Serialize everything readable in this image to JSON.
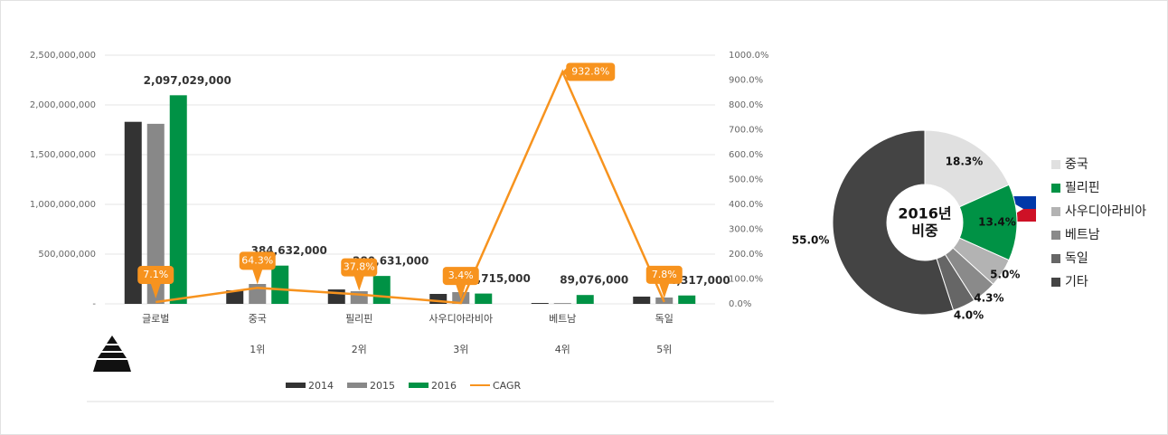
{
  "chart_data": [
    {
      "type": "bar",
      "categories": [
        "글로벌",
        "중국",
        "필리핀",
        "사우디아라비아",
        "베트남",
        "독일"
      ],
      "ranks": [
        null,
        "1위",
        "2위",
        "3위",
        "4위",
        "5위"
      ],
      "series": [
        {
          "name": "2014",
          "color": "#333333",
          "values": [
            1830000000,
            136000000,
            145000000,
            100000000,
            9000000,
            73000000
          ]
        },
        {
          "name": "2015",
          "color": "#888888",
          "values": [
            1810000000,
            200000000,
            127000000,
            118000000,
            8000000,
            64000000
          ]
        },
        {
          "name": "2016",
          "color": "#009245",
          "values": [
            2097029000,
            384632000,
            280631000,
            103715000,
            89076000,
            84317000
          ],
          "value_labels": [
            "2,097,029,000",
            "384,632,000",
            "280,631,000",
            "103,715,000",
            "89,076,000",
            "84,317,000"
          ]
        },
        {
          "name": "CAGR",
          "type": "line",
          "axis": "y2",
          "color": "#f7931e",
          "values": [
            7.1,
            64.3,
            37.8,
            3.4,
            932.8,
            7.8
          ],
          "value_labels": [
            "7.1%",
            "64.3%",
            "37.8%",
            "3.4%",
            "932.8%",
            "7.8%"
          ]
        }
      ],
      "ylim": [
        0,
        2500000000
      ],
      "yticks": [
        {
          "value": 0,
          "label": "-"
        },
        {
          "value": 500000000,
          "label": "500,000,000"
        },
        {
          "value": 1000000000,
          "label": "1,000,000,000"
        },
        {
          "value": 1500000000,
          "label": "1,500,000,000"
        },
        {
          "value": 2000000000,
          "label": "2,000,000,000"
        },
        {
          "value": 2500000000,
          "label": "2,500,000,000"
        }
      ],
      "y2lim": [
        0,
        1000
      ],
      "y2ticks": [
        {
          "value": 0,
          "label": "0.0%"
        },
        {
          "value": 100,
          "label": "100.0%"
        },
        {
          "value": 200,
          "label": "200.0%"
        },
        {
          "value": 300,
          "label": "300.0%"
        },
        {
          "value": 400,
          "label": "400.0%"
        },
        {
          "value": 500,
          "label": "500.0%"
        },
        {
          "value": 600,
          "label": "600.0%"
        },
        {
          "value": 700,
          "label": "700.0%"
        },
        {
          "value": 800,
          "label": "800.0%"
        },
        {
          "value": 900,
          "label": "900.0%"
        },
        {
          "value": 1000,
          "label": "1000.0%"
        }
      ],
      "grid": true,
      "legend": "bottom"
    },
    {
      "type": "pie",
      "center_label": [
        "2016년",
        "비중"
      ],
      "categories": [
        "중국",
        "필리핀",
        "사우디아라비아",
        "베트남",
        "독일",
        "기타"
      ],
      "values": [
        18.3,
        13.4,
        5.0,
        4.3,
        4.0,
        55.0
      ],
      "value_labels": [
        "18.3%",
        "13.4%",
        "5.0%",
        "4.3%",
        "4.0%",
        "55.0%"
      ],
      "colors": [
        "#e0e0e0",
        "#009245",
        "#b3b3b3",
        "#8a8a8a",
        "#666666",
        "#444444"
      ],
      "legend": "right"
    }
  ]
}
